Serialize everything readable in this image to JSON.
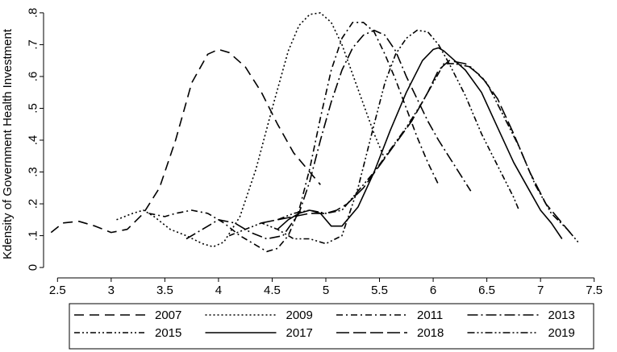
{
  "chart_data": {
    "type": "line",
    "ylabel": "Kdensity of Government Health Investment",
    "xlabel": "",
    "xlim": [
      2.4,
      7.6
    ],
    "ylim": [
      -0.02,
      0.82
    ],
    "xticks": [
      2.5,
      3,
      3.5,
      4,
      4.5,
      5,
      5.5,
      6,
      6.5,
      7,
      7.5
    ],
    "xtick_labels": [
      "2.5",
      "3",
      "3.5",
      "4",
      "4.5",
      "5",
      "5.5",
      "6",
      "6.5",
      "7",
      "7.5"
    ],
    "yticks": [
      0,
      0.1,
      0.2,
      0.3,
      0.4,
      0.5,
      0.6,
      0.7,
      0.8
    ],
    "ytick_labels": [
      "0",
      ".1",
      ".2",
      ".3",
      ".4",
      ".5",
      ".6",
      ".7",
      ".8"
    ],
    "grid": false,
    "legend_placement": "bottom",
    "series": [
      {
        "name": "2007",
        "dash": "long-dash",
        "x": [
          2.44,
          2.55,
          2.7,
          2.85,
          3.0,
          3.15,
          3.3,
          3.45,
          3.6,
          3.75,
          3.9,
          4.0,
          4.1,
          4.25,
          4.4,
          4.55,
          4.7,
          4.85,
          4.95
        ],
        "y": [
          0.11,
          0.14,
          0.145,
          0.13,
          0.11,
          0.12,
          0.17,
          0.25,
          0.4,
          0.58,
          0.67,
          0.685,
          0.675,
          0.63,
          0.55,
          0.45,
          0.36,
          0.3,
          0.26
        ]
      },
      {
        "name": "2009",
        "dash": "dotted",
        "x": [
          3.05,
          3.2,
          3.3,
          3.4,
          3.55,
          3.7,
          3.85,
          3.95,
          4.05,
          4.2,
          4.35,
          4.5,
          4.65,
          4.75,
          4.85,
          4.95,
          5.05,
          5.15,
          5.3,
          5.45,
          5.55
        ],
        "y": [
          0.15,
          0.17,
          0.18,
          0.16,
          0.12,
          0.1,
          0.075,
          0.065,
          0.08,
          0.16,
          0.31,
          0.5,
          0.68,
          0.76,
          0.795,
          0.8,
          0.77,
          0.7,
          0.56,
          0.42,
          0.34
        ]
      },
      {
        "name": "2011",
        "dash": "dash-dot",
        "x": [
          3.35,
          3.5,
          3.6,
          3.75,
          3.9,
          4.05,
          4.2,
          4.35,
          4.45,
          4.55,
          4.65,
          4.75,
          4.85,
          4.95,
          5.05,
          5.15,
          5.25,
          5.35,
          5.45,
          5.55,
          5.65,
          5.75,
          5.85,
          5.95,
          6.05
        ],
        "y": [
          0.17,
          0.16,
          0.17,
          0.18,
          0.17,
          0.14,
          0.1,
          0.07,
          0.05,
          0.06,
          0.1,
          0.18,
          0.31,
          0.47,
          0.62,
          0.72,
          0.77,
          0.77,
          0.74,
          0.67,
          0.59,
          0.5,
          0.41,
          0.33,
          0.26
        ]
      },
      {
        "name": "2013",
        "dash": "long-dash-dot",
        "x": [
          3.7,
          3.85,
          4.0,
          4.15,
          4.3,
          4.45,
          4.6,
          4.75,
          4.85,
          4.95,
          5.05,
          5.15,
          5.25,
          5.35,
          5.45,
          5.55,
          5.65,
          5.75,
          5.85,
          5.95,
          6.05,
          6.2,
          6.35
        ],
        "y": [
          0.09,
          0.12,
          0.15,
          0.14,
          0.11,
          0.09,
          0.1,
          0.17,
          0.27,
          0.4,
          0.52,
          0.62,
          0.69,
          0.73,
          0.745,
          0.73,
          0.68,
          0.6,
          0.53,
          0.46,
          0.4,
          0.32,
          0.24
        ]
      },
      {
        "name": "2015",
        "dash": "dash-dot-dot",
        "x": [
          4.1,
          4.25,
          4.4,
          4.55,
          4.7,
          4.85,
          5.0,
          5.15,
          5.3,
          5.45,
          5.55,
          5.65,
          5.75,
          5.85,
          5.95,
          6.05,
          6.15,
          6.3,
          6.45,
          6.6,
          6.75,
          6.8
        ],
        "y": [
          0.1,
          0.12,
          0.14,
          0.12,
          0.09,
          0.09,
          0.075,
          0.1,
          0.25,
          0.45,
          0.58,
          0.67,
          0.72,
          0.745,
          0.74,
          0.7,
          0.64,
          0.54,
          0.42,
          0.32,
          0.22,
          0.18
        ]
      },
      {
        "name": "2017",
        "dash": "solid",
        "x": [
          4.55,
          4.65,
          4.75,
          4.85,
          4.95,
          5.05,
          5.15,
          5.3,
          5.45,
          5.6,
          5.75,
          5.9,
          6.0,
          6.05,
          6.1,
          6.2,
          6.3,
          6.45,
          6.6,
          6.75,
          6.9,
          7.0,
          7.1,
          7.2
        ],
        "y": [
          0.12,
          0.15,
          0.17,
          0.18,
          0.17,
          0.13,
          0.13,
          0.19,
          0.3,
          0.43,
          0.55,
          0.65,
          0.685,
          0.69,
          0.68,
          0.65,
          0.62,
          0.55,
          0.44,
          0.33,
          0.24,
          0.18,
          0.14,
          0.09
        ]
      },
      {
        "name": "2018",
        "dash": "long-dash-2",
        "x": [
          4.4,
          4.55,
          4.7,
          4.85,
          5.0,
          5.1,
          5.2,
          5.35,
          5.5,
          5.65,
          5.8,
          5.95,
          6.05,
          6.15,
          6.3,
          6.45,
          6.6,
          6.75,
          6.9,
          7.05,
          7.2,
          7.3
        ],
        "y": [
          0.14,
          0.15,
          0.16,
          0.17,
          0.17,
          0.18,
          0.2,
          0.25,
          0.32,
          0.39,
          0.46,
          0.55,
          0.62,
          0.65,
          0.64,
          0.6,
          0.53,
          0.42,
          0.3,
          0.2,
          0.14,
          0.1
        ]
      },
      {
        "name": "2019",
        "dash": "dash-dot-dot-2",
        "x": [
          4.55,
          4.7,
          4.85,
          5.0,
          5.15,
          5.3,
          5.45,
          5.6,
          5.75,
          5.9,
          6.0,
          6.1,
          6.2,
          6.35,
          6.5,
          6.65,
          6.8,
          6.95,
          7.1,
          7.25,
          7.35
        ],
        "y": [
          0.15,
          0.17,
          0.18,
          0.17,
          0.18,
          0.24,
          0.3,
          0.37,
          0.44,
          0.52,
          0.58,
          0.64,
          0.64,
          0.63,
          0.58,
          0.48,
          0.38,
          0.26,
          0.17,
          0.12,
          0.08
        ]
      }
    ]
  }
}
